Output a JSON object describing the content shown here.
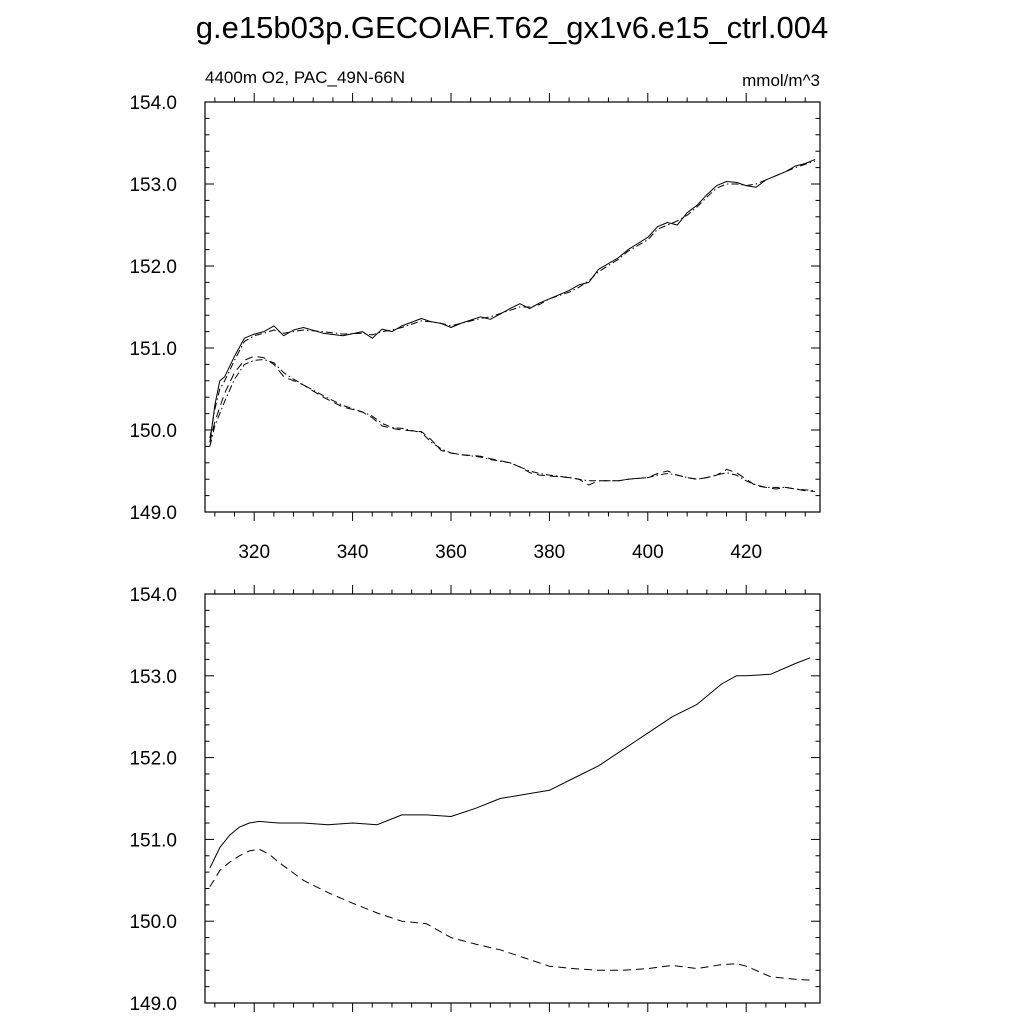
{
  "title": "g.e15b03p.GECOIAF.T62_gx1v6.e15_ctrl.004",
  "chart_data": [
    {
      "type": "line",
      "left_label": "4400m O2, PAC_49N-66N",
      "right_label": "mmol/m^3",
      "xlim": [
        310,
        435
      ],
      "ylim": [
        149.0,
        154.0
      ],
      "x_ticks": [
        320,
        340,
        360,
        380,
        400,
        420
      ],
      "x_tick_labels": [
        "320",
        "340",
        "360",
        "380",
        "400",
        "420"
      ],
      "y_ticks": [
        149.0,
        150.0,
        151.0,
        152.0,
        153.0,
        154.0
      ],
      "y_tick_labels": [
        "149.0",
        "150.0",
        "151.0",
        "152.0",
        "153.0",
        "154.0"
      ],
      "series": [
        {
          "style": "solid",
          "x": [
            311,
            312,
            313,
            314,
            316,
            318,
            320,
            322,
            324,
            326,
            328,
            330,
            334,
            338,
            342,
            344,
            346,
            348,
            350,
            354,
            356,
            358,
            360,
            362,
            366,
            368,
            372,
            374,
            376,
            378,
            380,
            384,
            386,
            388,
            390,
            394,
            396,
            400,
            402,
            404,
            406,
            408,
            410,
            412,
            414,
            416,
            418,
            420,
            422,
            424,
            426,
            428,
            430,
            432,
            434
          ],
          "values": [
            149.85,
            150.3,
            150.6,
            150.65,
            150.9,
            151.12,
            151.17,
            151.2,
            151.27,
            151.15,
            151.22,
            151.25,
            151.18,
            151.15,
            151.2,
            151.12,
            151.23,
            151.2,
            151.27,
            151.36,
            151.32,
            151.3,
            151.25,
            151.3,
            151.38,
            151.35,
            151.48,
            151.54,
            151.48,
            151.55,
            151.6,
            151.7,
            151.77,
            151.8,
            151.96,
            152.1,
            152.2,
            152.35,
            152.48,
            152.53,
            152.5,
            152.65,
            152.74,
            152.87,
            152.98,
            153.03,
            153.02,
            152.98,
            152.96,
            153.05,
            153.1,
            153.15,
            153.22,
            153.25,
            153.3
          ]
        },
        {
          "style": "dash-dot",
          "x": [
            311,
            312,
            313,
            314,
            316,
            318,
            320,
            322,
            324,
            326,
            328,
            330,
            334,
            338,
            342,
            344,
            346,
            348,
            350,
            354,
            356,
            358,
            360,
            362,
            366,
            368,
            372,
            374,
            376,
            378,
            380,
            384,
            386,
            388,
            390,
            394,
            396,
            400,
            402,
            404,
            406,
            408,
            410,
            412,
            414,
            416,
            418,
            420,
            422,
            424,
            426,
            428,
            430,
            432,
            434
          ],
          "values": [
            149.9,
            150.25,
            150.5,
            150.6,
            150.85,
            151.08,
            151.15,
            151.18,
            151.22,
            151.18,
            151.2,
            151.22,
            151.2,
            151.17,
            151.18,
            151.16,
            151.2,
            151.22,
            151.25,
            151.33,
            151.32,
            151.3,
            151.27,
            151.3,
            151.36,
            151.38,
            151.46,
            151.5,
            151.5,
            151.53,
            151.6,
            151.68,
            151.74,
            151.82,
            151.93,
            152.08,
            152.18,
            152.32,
            152.45,
            152.5,
            152.55,
            152.62,
            152.72,
            152.84,
            152.95,
            153.0,
            153.0,
            152.98,
            153.0,
            153.05,
            153.1,
            153.15,
            153.2,
            153.24,
            153.28
          ]
        },
        {
          "style": "dash",
          "x": [
            311,
            312,
            314,
            316,
            318,
            320,
            322,
            324,
            326,
            328,
            330,
            334,
            338,
            342,
            344,
            346,
            348,
            350,
            354,
            356,
            358,
            360,
            362,
            366,
            368,
            372,
            374,
            376,
            378,
            380,
            384,
            386,
            388,
            390,
            394,
            396,
            400,
            402,
            404,
            406,
            408,
            410,
            412,
            414,
            416,
            418,
            420,
            422,
            424,
            426,
            428,
            430,
            432,
            434
          ],
          "values": [
            149.85,
            150.1,
            150.45,
            150.7,
            150.85,
            150.9,
            150.88,
            150.8,
            150.65,
            150.6,
            150.55,
            150.4,
            150.28,
            150.22,
            150.15,
            150.05,
            150.02,
            150.0,
            149.98,
            149.88,
            149.75,
            149.72,
            149.7,
            149.68,
            149.65,
            149.6,
            149.55,
            149.48,
            149.45,
            149.44,
            149.42,
            149.4,
            149.33,
            149.38,
            149.38,
            149.4,
            149.42,
            149.47,
            149.5,
            149.45,
            149.42,
            149.4,
            149.42,
            149.45,
            149.52,
            149.48,
            149.4,
            149.32,
            149.3,
            149.28,
            149.3,
            149.28,
            149.26,
            149.25
          ]
        },
        {
          "style": "dash-dot",
          "x": [
            311,
            312,
            314,
            316,
            318,
            320,
            322,
            324,
            326,
            328,
            330,
            334,
            338,
            342,
            344,
            346,
            348,
            350,
            354,
            356,
            358,
            360,
            362,
            366,
            368,
            372,
            374,
            376,
            378,
            380,
            384,
            386,
            388,
            390,
            394,
            396,
            400,
            402,
            404,
            406,
            408,
            410,
            412,
            414,
            416,
            418,
            420,
            422,
            424,
            426,
            428,
            430,
            432,
            434
          ],
          "values": [
            149.8,
            150.05,
            150.35,
            150.62,
            150.8,
            150.85,
            150.86,
            150.82,
            150.7,
            150.62,
            150.55,
            150.42,
            150.3,
            150.22,
            150.17,
            150.08,
            150.03,
            150.02,
            149.97,
            149.85,
            149.77,
            149.72,
            149.7,
            149.67,
            149.64,
            149.6,
            149.55,
            149.5,
            149.47,
            149.45,
            149.42,
            149.4,
            149.38,
            149.38,
            149.38,
            149.4,
            149.42,
            149.45,
            149.47,
            149.45,
            149.42,
            149.4,
            149.42,
            149.45,
            149.48,
            149.45,
            149.38,
            149.33,
            149.3,
            149.3,
            149.3,
            149.28,
            149.27,
            149.26
          ]
        }
      ]
    },
    {
      "type": "line",
      "xlim": [
        310,
        435
      ],
      "ylim": [
        149.0,
        154.0
      ],
      "x_ticks": [
        320,
        340,
        360,
        380,
        400,
        420
      ],
      "y_ticks": [
        149.0,
        150.0,
        151.0,
        152.0,
        153.0,
        154.0
      ],
      "y_tick_labels": [
        "149.0",
        "150.0",
        "151.0",
        "152.0",
        "153.0",
        "154.0"
      ],
      "series": [
        {
          "style": "solid",
          "x": [
            311,
            313,
            315,
            317,
            319,
            321,
            323,
            325,
            330,
            335,
            340,
            345,
            350,
            355,
            360,
            365,
            370,
            375,
            380,
            385,
            390,
            395,
            400,
            405,
            410,
            415,
            418,
            420,
            425,
            430,
            433
          ],
          "values": [
            150.65,
            150.9,
            151.05,
            151.15,
            151.2,
            151.22,
            151.21,
            151.2,
            151.2,
            151.18,
            151.2,
            151.18,
            151.3,
            151.3,
            151.28,
            151.38,
            151.5,
            151.55,
            151.6,
            151.75,
            151.9,
            152.1,
            152.3,
            152.5,
            152.65,
            152.9,
            153.0,
            153.0,
            153.02,
            153.15,
            153.22
          ]
        },
        {
          "style": "dash",
          "x": [
            311,
            313,
            315,
            317,
            319,
            321,
            323,
            325,
            330,
            335,
            340,
            345,
            350,
            355,
            360,
            365,
            370,
            375,
            380,
            385,
            390,
            395,
            400,
            405,
            410,
            415,
            418,
            420,
            425,
            430,
            433
          ],
          "values": [
            150.42,
            150.62,
            150.72,
            150.8,
            150.86,
            150.88,
            150.82,
            150.72,
            150.5,
            150.35,
            150.22,
            150.1,
            150.0,
            149.97,
            149.8,
            149.72,
            149.65,
            149.55,
            149.45,
            149.42,
            149.4,
            149.4,
            149.42,
            149.46,
            149.42,
            149.47,
            149.48,
            149.45,
            149.32,
            149.29,
            149.28
          ]
        }
      ]
    }
  ]
}
